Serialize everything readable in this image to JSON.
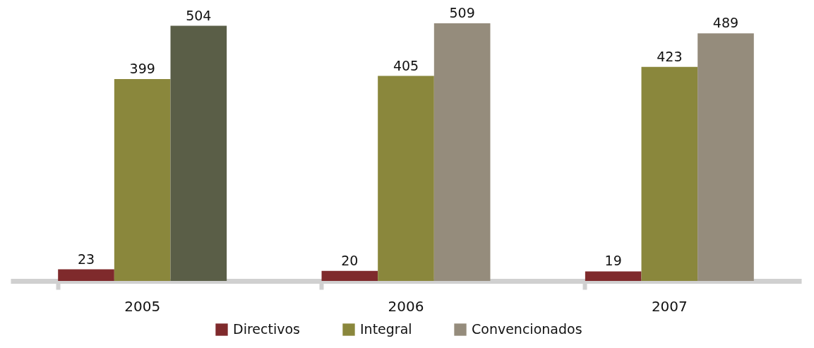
{
  "chart_data": {
    "type": "bar",
    "categories": [
      "2005",
      "2006",
      "2007"
    ],
    "series": [
      {
        "name": "Directivos",
        "color": "#7f2a2c",
        "values": [
          23,
          20,
          19
        ]
      },
      {
        "name": "Integral",
        "color": "#8a873c",
        "values": [
          399,
          405,
          423
        ]
      },
      {
        "name": "Convencionados",
        "color": "#958c7c",
        "colors": [
          "#5a5e47",
          "#958c7c",
          "#958c7c"
        ],
        "values": [
          504,
          509,
          489
        ]
      }
    ],
    "data_labels": true,
    "legend": "bottom"
  }
}
